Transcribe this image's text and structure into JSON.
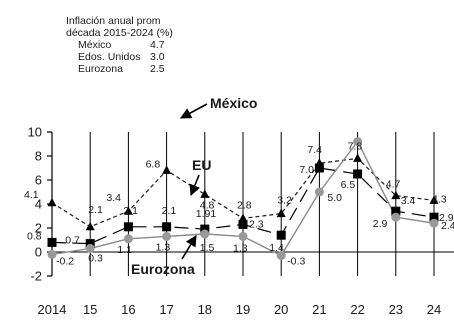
{
  "chart_data": {
    "type": "line",
    "title": "",
    "xlabel": "",
    "ylabel": "",
    "x": [
      "2014",
      "15",
      "16",
      "17",
      "18",
      "19",
      "20",
      "21",
      "22",
      "23",
      "24"
    ],
    "ylim": [
      -2,
      10
    ],
    "yticks": [
      "-2",
      "0",
      "2",
      "4",
      "6",
      "8",
      "10"
    ],
    "series": [
      {
        "name": "México",
        "values": [
          4.1,
          2.1,
          3.4,
          6.8,
          4.8,
          2.8,
          3.2,
          7.4,
          7.8,
          4.7,
          4.3
        ],
        "labels": [
          "4.1",
          "2.1",
          "3.4",
          "6.8",
          "4.8",
          "2.8",
          "3.2",
          "7.4",
          "7.8",
          "4.7",
          "4.3"
        ],
        "color": "#1a1a1a",
        "line_style": "short-dashed",
        "marker": "triangle"
      },
      {
        "name": "EU",
        "values": [
          0.8,
          0.7,
          2.1,
          2.1,
          1.91,
          2.3,
          1.4,
          7.0,
          6.5,
          3.4,
          2.9
        ],
        "labels": [
          "0.8",
          "0.7",
          "2.1",
          "2.1",
          "1.91",
          "2.3",
          "1.4",
          "7.0",
          "6.5",
          "3.4",
          "2.9"
        ],
        "color": "#000000",
        "line_style": "long-dashed",
        "marker": "square"
      },
      {
        "name": "Eurozona",
        "values": [
          -0.2,
          0.3,
          1.1,
          1.3,
          1.5,
          1.3,
          -0.3,
          5.0,
          9.2,
          2.9,
          2.4
        ],
        "labels": [
          "-0.2",
          "0.3",
          "1.1",
          "1.3",
          "1.5",
          "1.3",
          "-0.3",
          "5.0",
          "",
          "2.9",
          "2.4"
        ],
        "color": "#8a8a8a",
        "line_style": "solid",
        "marker": "circle"
      }
    ],
    "legend": {
      "title_line1": "Inflación anual prom",
      "title_line2": "década 2015-2024 (%)",
      "rows": [
        {
          "name": "México",
          "value": "4.7"
        },
        {
          "name": "Edos. Unidos",
          "value": "3.0"
        },
        {
          "name": "Eurozona",
          "value": "2.5"
        }
      ],
      "position": "top-left"
    },
    "series_labels": [
      {
        "text": "México"
      },
      {
        "text": "EU"
      },
      {
        "text": "Eurozona"
      }
    ],
    "grid": "vertical lines at each year",
    "zero_line": true
  }
}
